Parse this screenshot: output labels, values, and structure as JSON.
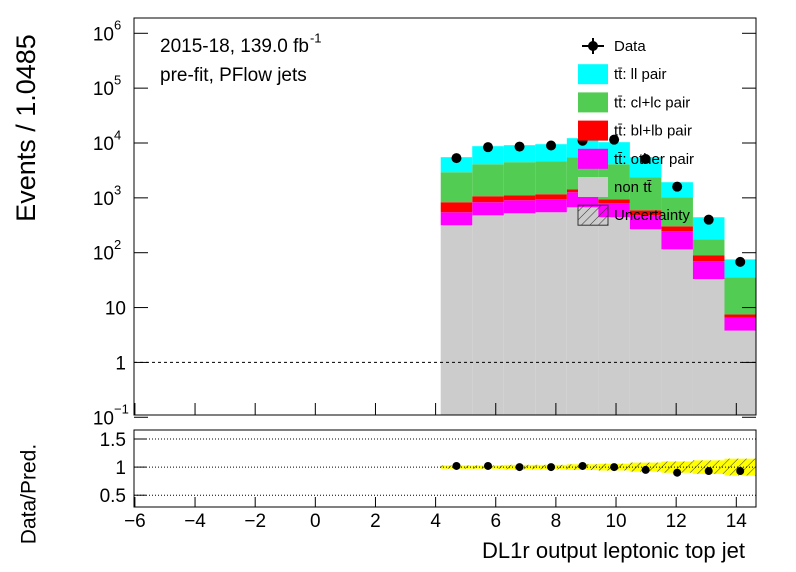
{
  "chart_data": [
    {
      "type": "stacked-histogram",
      "y_label": "Events / 1.0485",
      "log_y": true,
      "annotations": [
        {
          "text": "2015-18, 139.0 fb",
          "sup": "-1"
        },
        {
          "text": "pre-fit, PFlow jets"
        }
      ],
      "bins": [
        4.17,
        5.2185,
        6.267,
        7.3155,
        8.364,
        9.4125,
        10.461,
        11.5095,
        12.558,
        13.6065,
        14.655
      ],
      "xlim": [
        -6.03,
        14.655
      ],
      "ylim": [
        0.11,
        1900000
      ],
      "yticks": [
        {
          "value": 0.1,
          "label": "10",
          "exponent": "−1"
        },
        1,
        10,
        {
          "value": 100,
          "label": "10",
          "exponent": "2"
        },
        {
          "value": 1000,
          "label": "10",
          "exponent": "3"
        },
        {
          "value": 10000,
          "label": "10",
          "exponent": "4"
        },
        {
          "value": 100000,
          "label": "10",
          "exponent": "5"
        },
        {
          "value": 1000000,
          "label": "10",
          "exponent": "6"
        }
      ],
      "reference_line": 1,
      "legend": "top-right",
      "data": {
        "name": "Data",
        "color": "#000000",
        "values": [
          5300,
          8400,
          8600,
          9000,
          11000,
          11500,
          5100,
          1600,
          400,
          68
        ]
      },
      "series": [
        {
          "name": "tt̄: ll pair",
          "color": "#00ffff",
          "values": [
            2580,
            4650,
            4650,
            4850,
            6730,
            6250,
            3130,
            901,
            267,
            40
          ]
        },
        {
          "name": "tt̄: cl+lc pair",
          "color": "#52cc52",
          "values": [
            2100,
            3030,
            3355,
            3496,
            4075,
            3158,
            1786,
            723,
            86,
            28
          ]
        },
        {
          "name": "tt̄: bl+lb pair",
          "color": "#ff0000",
          "values": [
            286,
            238,
            211,
            222,
            170,
            145,
            113,
            57,
            20,
            0.9
          ]
        },
        {
          "name": "tt̄: other pair",
          "color": "#ff00ff",
          "values": [
            230,
            351,
            380,
            396,
            591,
            354,
            214,
            131,
            37,
            2.8
          ]
        },
        {
          "name": "non tt̄",
          "color": "#cccccc",
          "values": [
            316,
            481,
            524,
            546,
            674,
            443,
            267,
            115,
            33,
            3.8
          ]
        }
      ],
      "uncertainty": {
        "name": "Uncertainty"
      }
    },
    {
      "type": "ratio",
      "y_label": "Data/Pred.",
      "x_label": "DL1r output leptonic top jet",
      "values": [
        1.02,
        1.02,
        1.0,
        1.0,
        1.02,
        1.0,
        0.95,
        0.9,
        0.93,
        0.93
      ],
      "band_center": 1,
      "uncertainty": [
        0.03,
        0.03,
        0.04,
        0.04,
        0.05,
        0.06,
        0.08,
        0.1,
        0.12,
        0.15
      ],
      "band_color": "#ffff00",
      "ylim": [
        0.29,
        1.66
      ],
      "yticks": [
        0.5,
        1,
        1.5
      ],
      "grid": true,
      "xticks": [
        {
          "value": -6,
          "label": "−6"
        },
        {
          "value": -4,
          "label": "−4"
        },
        {
          "value": -2,
          "label": "−2"
        },
        0,
        2,
        4,
        6,
        8,
        10,
        12,
        14
      ]
    }
  ]
}
